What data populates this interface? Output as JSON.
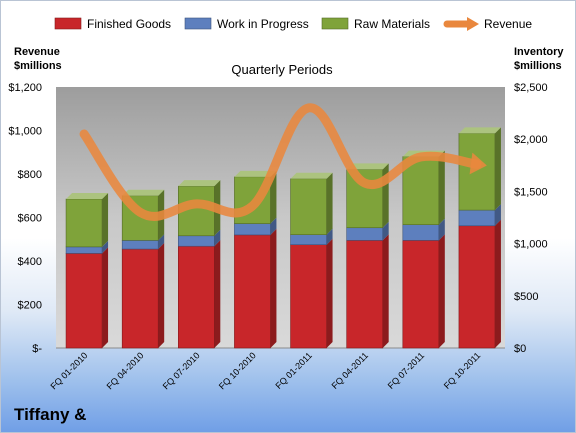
{
  "company": "Tiffany &",
  "colors": {
    "finished_goods": "#c8262a",
    "work_in_progress": "#5d7fbe",
    "raw_materials": "#7fa33a",
    "revenue": "#e9873d",
    "plot_background": "#c6c6c6"
  },
  "chart_data": {
    "type": "bar",
    "stacked": true,
    "title": "Quarterly Periods",
    "categories": [
      "FQ 01-2010",
      "FQ 04-2010",
      "FQ 07-2010",
      "FQ 10-2010",
      "FQ 01-2011",
      "FQ 04-2011",
      "FQ 07-2011",
      "FQ 10-2011"
    ],
    "series": [
      {
        "name": "Finished Goods",
        "axis": "left",
        "values": [
          435,
          455,
          468,
          520,
          475,
          495,
          495,
          562
        ]
      },
      {
        "name": "Work in Progress",
        "axis": "left",
        "values": [
          30,
          40,
          48,
          52,
          46,
          58,
          72,
          72
        ]
      },
      {
        "name": "Raw Materials",
        "axis": "left",
        "values": [
          220,
          205,
          228,
          215,
          257,
          268,
          313,
          353
        ]
      },
      {
        "name": "Revenue",
        "type": "line",
        "axis": "right",
        "values": [
          2050,
          1300,
          1380,
          1360,
          2300,
          1580,
          1830,
          1760
        ]
      }
    ],
    "left_axis": {
      "label": "Revenue $millions",
      "label_lines": [
        "Revenue",
        "$millions"
      ],
      "min": 0,
      "max": 1200,
      "ticks": [
        0,
        200,
        400,
        600,
        800,
        1000,
        1200
      ],
      "tick_labels": [
        "$-",
        "$200",
        "$400",
        "$600",
        "$800",
        "$1,000",
        "$1,200"
      ]
    },
    "right_axis": {
      "label": "Inventory $millions",
      "label_lines": [
        "Inventory",
        "$millions"
      ],
      "min": 0,
      "max": 2500,
      "ticks": [
        0,
        500,
        1000,
        1500,
        2000,
        2500
      ],
      "tick_labels": [
        "$0",
        "$500",
        "$1,000",
        "$1,500",
        "$2,000",
        "$2,500"
      ]
    },
    "grid": false,
    "legend_position": "top"
  }
}
